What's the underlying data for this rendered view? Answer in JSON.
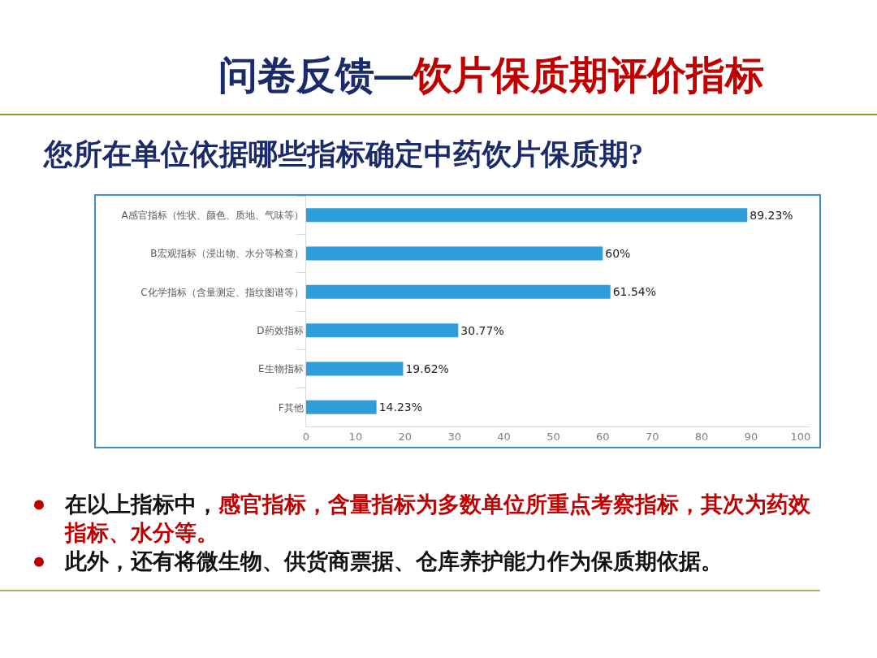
{
  "chart_data": {
    "type": "bar",
    "orientation": "horizontal",
    "title": "问卷反馈—饮片保质期评价指标",
    "subtitle": "您所在单位依据哪些指标确定中药饮片保质期?",
    "categories": [
      "A感官指标（性状、颜色、质地、气味等）",
      "B宏观指标（浸出物、水分等检查）",
      "C化学指标（含量测定、指纹图谱等）",
      "D药效指标",
      "E生物指标",
      "F其他"
    ],
    "values": [
      89.23,
      60,
      61.54,
      30.77,
      19.62,
      14.23
    ],
    "value_labels": [
      "89.23%",
      "60%",
      "61.54%",
      "30.77%",
      "19.62%",
      "14.23%"
    ],
    "color": "#2e9edb",
    "xlim": [
      0,
      102
    ],
    "xticks": [
      0,
      10,
      20,
      30,
      40,
      50,
      60,
      70,
      80,
      90,
      100
    ],
    "grid": false,
    "legend": false,
    "annotations": [
      "在以上指标中，感官指标，含量指标为多数单位所重点考察指标，其次为药效指标、水分等。",
      "此外，还有将微生物、供货商票据、仓库养护能力作为保质期依据。"
    ]
  }
}
